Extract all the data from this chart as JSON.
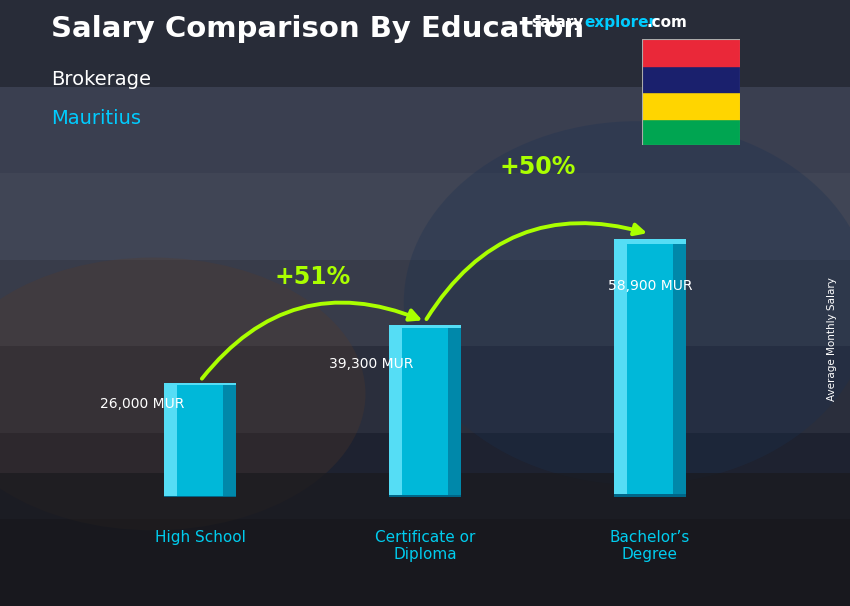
{
  "title": "Salary Comparison By Education",
  "subtitle": "Brokerage",
  "location": "Mauritius",
  "categories": [
    "High School",
    "Certificate or\nDiploma",
    "Bachelor’s\nDegree"
  ],
  "values": [
    26000,
    39300,
    58900
  ],
  "value_labels": [
    "26,000 MUR",
    "39,300 MUR",
    "58,900 MUR"
  ],
  "pct_labels": [
    "+51%",
    "+50%"
  ],
  "bar_face_color": "#00b8d9",
  "bar_highlight_color": "#55ddf5",
  "bar_shadow_color": "#0088aa",
  "bar_edge_color": "#006688",
  "bg_top_color": "#4a5060",
  "bg_bottom_color": "#1a1a20",
  "title_color": "#ffffff",
  "subtitle_color": "#ffffff",
  "location_color": "#00ccff",
  "value_label_color": "#ffffff",
  "pct_color": "#aaff00",
  "arrow_color": "#aaff00",
  "cat_label_color": "#00ccee",
  "axis_label_color": "#ffffff",
  "website_salary_color": "#ffffff",
  "website_explorer_color": "#00ccff",
  "website_com_color": "#ffffff",
  "axis_label": "Average Monthly Salary",
  "flag_colors": [
    "#EA2839",
    "#1A206D",
    "#FFD500",
    "#00A551"
  ],
  "bar_width": 0.32,
  "ylim": [
    0,
    72000
  ],
  "xlim": [
    -0.55,
    2.55
  ]
}
